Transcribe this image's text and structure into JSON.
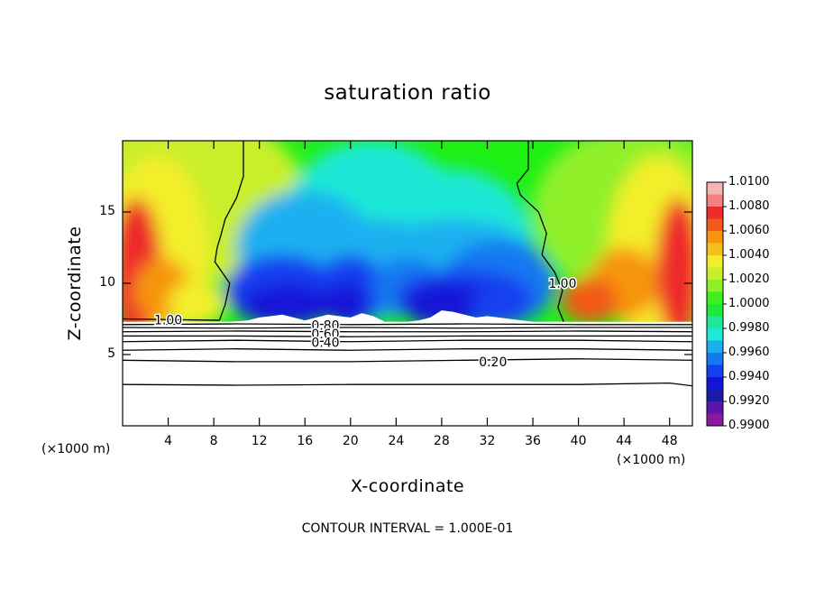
{
  "chart_data": {
    "type": "heatmap",
    "title": "saturation ratio",
    "xlabel": "X-coordinate",
    "ylabel": "Z-coordinate",
    "x_unit_label": "(×1000 m)",
    "z_unit_label": "(×1000 m)",
    "xlim": [
      0,
      50
    ],
    "ylim": [
      0,
      20
    ],
    "x_ticks": [
      4,
      8,
      12,
      16,
      20,
      24,
      28,
      32,
      36,
      40,
      44,
      48
    ],
    "x_tick_labels": [
      "4",
      "8",
      "12",
      "16",
      "20",
      "24",
      "28",
      "32",
      "36",
      "40",
      "44",
      "48"
    ],
    "y_ticks": [
      5,
      10,
      15
    ],
    "y_tick_labels": [
      "5",
      "10",
      "15"
    ],
    "footer": "CONTOUR INTERVAL = 1.000E-01",
    "colorbar": {
      "min": 0.99,
      "max": 1.01,
      "labels": [
        "1.0100",
        "1.0080",
        "1.0060",
        "1.0040",
        "1.0020",
        "1.0000",
        "0.9980",
        "0.9960",
        "0.9940",
        "0.9920",
        "0.9900"
      ],
      "colors": [
        "#f4b4b4",
        "#f58080",
        "#ee2a2a",
        "#f25a18",
        "#f7940f",
        "#f5c01a",
        "#f3ee2c",
        "#c9ee2c",
        "#8ff02a",
        "#3cf01e",
        "#1ee83a",
        "#1ee89a",
        "#1ee8d8",
        "#1ab0f0",
        "#1478f0",
        "#1440f0",
        "#1414d8",
        "#1a1aa8",
        "#5a16a8",
        "#8c1aa0"
      ]
    },
    "filled_field_base_z": 7.3,
    "filled_field_top_z": 20,
    "cloud_bottom_profile_x": [
      9.5,
      11,
      12,
      13,
      14,
      15,
      16,
      17,
      18,
      19,
      20,
      21,
      22,
      23,
      24,
      25,
      26,
      27,
      28,
      29,
      30,
      31,
      32,
      33,
      34,
      35,
      36,
      37,
      38
    ],
    "cloud_bottom_profile_z": [
      7.3,
      7.4,
      7.6,
      7.7,
      7.8,
      7.6,
      7.4,
      7.6,
      7.8,
      7.7,
      7.6,
      7.9,
      7.7,
      7.3,
      7.3,
      7.3,
      7.4,
      7.6,
      8.1,
      8.0,
      7.8,
      7.6,
      7.7,
      7.6,
      7.5,
      7.4,
      7.3,
      7.3,
      7.3
    ],
    "contour_lines": [
      {
        "level": "1.00",
        "x": [
          0,
          8.5
        ],
        "z": [
          7.5,
          7.4
        ]
      },
      {
        "level": "1.00",
        "x": [
          8.5,
          9.0,
          9.4,
          8.1,
          8.3,
          8.6,
          9.0,
          10.0,
          10.6,
          10.6
        ],
        "z": [
          7.4,
          8.5,
          10.0,
          11.5,
          12.5,
          13.3,
          14.5,
          16.0,
          17.5,
          20.0
        ]
      },
      {
        "level": "1.00",
        "x": [
          38.7,
          38.2,
          38.6,
          37.9,
          36.8,
          37.2,
          36.5,
          34.9,
          34.6,
          35.6,
          35.6
        ],
        "z": [
          7.3,
          8.3,
          9.5,
          10.8,
          12.0,
          13.5,
          15.0,
          16.2,
          17.0,
          18.0,
          20.0
        ]
      },
      {
        "level": "0.80",
        "x": [
          0,
          10,
          20,
          30,
          40,
          50
        ],
        "z": [
          7.1,
          7.15,
          7.1,
          7.15,
          7.1,
          7.1
        ]
      },
      {
        "level": "0.70",
        "x": [
          0,
          10,
          20,
          30,
          40,
          50
        ],
        "z": [
          6.9,
          6.85,
          6.9,
          6.85,
          6.9,
          6.9
        ]
      },
      {
        "level": "0.60",
        "x": [
          0,
          10,
          20,
          30,
          40,
          50
        ],
        "z": [
          6.6,
          6.65,
          6.6,
          6.6,
          6.65,
          6.6
        ]
      },
      {
        "level": "0.50",
        "x": [
          0,
          10,
          20,
          30,
          40,
          50
        ],
        "z": [
          6.3,
          6.3,
          6.25,
          6.3,
          6.3,
          6.3
        ]
      },
      {
        "level": "0.40",
        "x": [
          0,
          10,
          20,
          30,
          40,
          50
        ],
        "z": [
          5.9,
          6.0,
          5.9,
          6.0,
          6.0,
          5.9
        ]
      },
      {
        "level": "0.30",
        "x": [
          0,
          10,
          20,
          30,
          40,
          50
        ],
        "z": [
          5.3,
          5.4,
          5.3,
          5.4,
          5.4,
          5.3
        ]
      },
      {
        "level": "0.20",
        "x": [
          0,
          10,
          20,
          30,
          40,
          50
        ],
        "z": [
          4.6,
          4.5,
          4.5,
          4.6,
          4.7,
          4.6
        ]
      },
      {
        "level": "0.10",
        "x": [
          0,
          10,
          20,
          30,
          40,
          48,
          50
        ],
        "z": [
          2.9,
          2.85,
          2.9,
          2.9,
          2.9,
          3.0,
          2.8
        ]
      }
    ],
    "contour_labels": [
      {
        "text": "1.00",
        "x": 4.0,
        "z": 7.45
      },
      {
        "text": "1.00",
        "x": 38.6,
        "z": 10.0
      },
      {
        "text": "0.80",
        "x": 17.8,
        "z": 7.05
      },
      {
        "text": "0.60",
        "x": 17.8,
        "z": 6.45
      },
      {
        "text": "0.40",
        "x": 17.8,
        "z": 5.85
      },
      {
        "text": "0.20",
        "x": 32.5,
        "z": 4.5
      }
    ]
  }
}
